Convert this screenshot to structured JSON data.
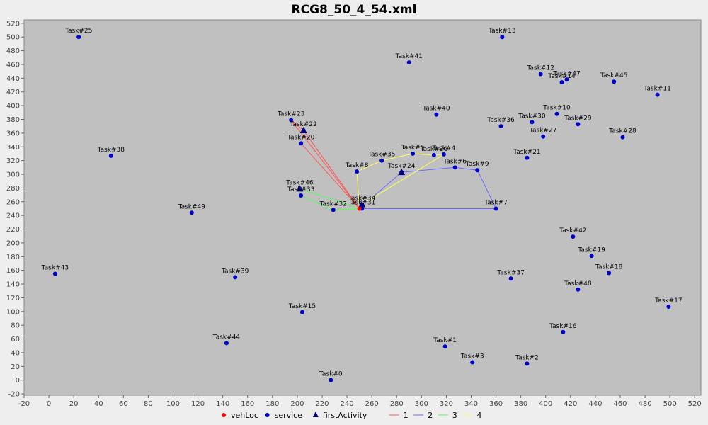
{
  "chart_data": {
    "type": "scatter",
    "title": "RCG8_50_4_54.xml",
    "xlim": [
      -20,
      525
    ],
    "ylim": [
      -22,
      525
    ],
    "xticks": [
      -20,
      0,
      20,
      40,
      60,
      80,
      100,
      120,
      140,
      160,
      180,
      200,
      220,
      240,
      260,
      280,
      300,
      320,
      340,
      360,
      380,
      400,
      420,
      440,
      460,
      480,
      500,
      520
    ],
    "yticks": [
      -20,
      0,
      20,
      40,
      60,
      80,
      100,
      120,
      140,
      160,
      180,
      200,
      220,
      240,
      260,
      280,
      300,
      320,
      340,
      360,
      380,
      400,
      420,
      440,
      460,
      480,
      500,
      520
    ],
    "grid": false,
    "legend_position": "bottom",
    "colors": {
      "background": "#c0c0c0",
      "service": "#0000cc",
      "vehLoc": "#ff0000",
      "firstActivity": "#000080",
      "route_1": "#ff5555",
      "route_2": "#6a6aff",
      "route_3": "#55ff55",
      "route_4": "#ffff55"
    },
    "legend": [
      {
        "label": "vehLoc",
        "marker": "circle",
        "color": "#ff0000"
      },
      {
        "label": "service",
        "marker": "circle",
        "color": "#0000cc"
      },
      {
        "label": "firstActivity",
        "marker": "triangle",
        "color": "#000080"
      },
      {
        "label": "1",
        "marker": "line",
        "color": "#ff5555"
      },
      {
        "label": "2",
        "marker": "line",
        "color": "#6a6aff"
      },
      {
        "label": "3",
        "marker": "line",
        "color": "#55ff55"
      },
      {
        "label": "4",
        "marker": "line",
        "color": "#ffff55"
      }
    ],
    "vehLoc": {
      "x": 250,
      "y": 250
    },
    "tasks": [
      {
        "label": "Task#0",
        "x": 227,
        "y": 0
      },
      {
        "label": "Task#1",
        "x": 319,
        "y": 49
      },
      {
        "label": "Task#2",
        "x": 385,
        "y": 24
      },
      {
        "label": "Task#3",
        "x": 341,
        "y": 26
      },
      {
        "label": "Task#4",
        "x": 318,
        "y": 329
      },
      {
        "label": "Task#5",
        "x": 293,
        "y": 330
      },
      {
        "label": "Task#6",
        "x": 327,
        "y": 310
      },
      {
        "label": "Task#7",
        "x": 360,
        "y": 250
      },
      {
        "label": "Task#8",
        "x": 248,
        "y": 304
      },
      {
        "label": "Task#9",
        "x": 345,
        "y": 306
      },
      {
        "label": "Task#10",
        "x": 409,
        "y": 388
      },
      {
        "label": "Task#11",
        "x": 490,
        "y": 416
      },
      {
        "label": "Task#12",
        "x": 396,
        "y": 446
      },
      {
        "label": "Task#13",
        "x": 365,
        "y": 500
      },
      {
        "label": "Task#14",
        "x": 413,
        "y": 434
      },
      {
        "label": "Task#15",
        "x": 204,
        "y": 99
      },
      {
        "label": "Task#16",
        "x": 414,
        "y": 70
      },
      {
        "label": "Task#17",
        "x": 499,
        "y": 107
      },
      {
        "label": "Task#18",
        "x": 451,
        "y": 156
      },
      {
        "label": "Task#19",
        "x": 437,
        "y": 181
      },
      {
        "label": "Task#20",
        "x": 203,
        "y": 345
      },
      {
        "label": "Task#21",
        "x": 385,
        "y": 324
      },
      {
        "label": "Task#22",
        "x": 205,
        "y": 364
      },
      {
        "label": "Task#23",
        "x": 195,
        "y": 379
      },
      {
        "label": "Task#24",
        "x": 284,
        "y": 303
      },
      {
        "label": "Task#25",
        "x": 24,
        "y": 500
      },
      {
        "label": "Task#26",
        "x": 310,
        "y": 328
      },
      {
        "label": "Task#27",
        "x": 398,
        "y": 355
      },
      {
        "label": "Task#28",
        "x": 462,
        "y": 354
      },
      {
        "label": "Task#29",
        "x": 426,
        "y": 373
      },
      {
        "label": "Task#30",
        "x": 389,
        "y": 376
      },
      {
        "label": "Task#31",
        "x": 252,
        "y": 250
      },
      {
        "label": "Task#32",
        "x": 229,
        "y": 248
      },
      {
        "label": "Task#33",
        "x": 203,
        "y": 269
      },
      {
        "label": "Task#34",
        "x": 252,
        "y": 256
      },
      {
        "label": "Task#35",
        "x": 268,
        "y": 320
      },
      {
        "label": "Task#36",
        "x": 364,
        "y": 370
      },
      {
        "label": "Task#37",
        "x": 372,
        "y": 148
      },
      {
        "label": "Task#38",
        "x": 50,
        "y": 327
      },
      {
        "label": "Task#39",
        "x": 150,
        "y": 150
      },
      {
        "label": "Task#40",
        "x": 312,
        "y": 387
      },
      {
        "label": "Task#41",
        "x": 290,
        "y": 463
      },
      {
        "label": "Task#42",
        "x": 422,
        "y": 209
      },
      {
        "label": "Task#43",
        "x": 5,
        "y": 155
      },
      {
        "label": "Task#44",
        "x": 143,
        "y": 54
      },
      {
        "label": "Task#45",
        "x": 455,
        "y": 435
      },
      {
        "label": "Task#46",
        "x": 202,
        "y": 279
      },
      {
        "label": "Task#47",
        "x": 417,
        "y": 438
      },
      {
        "label": "Task#48",
        "x": 426,
        "y": 132
      },
      {
        "label": "Task#49",
        "x": 115,
        "y": 244
      }
    ],
    "first_activities": [
      {
        "x": 205,
        "y": 364
      },
      {
        "x": 284,
        "y": 303
      },
      {
        "x": 202,
        "y": 279
      },
      {
        "x": 252,
        "y": 256
      }
    ],
    "series": [
      {
        "name": "1",
        "color": "#ff5555",
        "path": [
          [
            250,
            250
          ],
          [
            195,
            379
          ],
          [
            205,
            364
          ],
          [
            250,
            250
          ],
          [
            203,
            345
          ],
          [
            250,
            250
          ]
        ]
      },
      {
        "name": "2",
        "color": "#6a6aff",
        "path": [
          [
            250,
            250
          ],
          [
            284,
            303
          ],
          [
            327,
            310
          ],
          [
            345,
            306
          ],
          [
            360,
            250
          ],
          [
            252,
            250
          ]
        ]
      },
      {
        "name": "3",
        "color": "#55ff55",
        "path": [
          [
            250,
            250
          ],
          [
            202,
            279
          ],
          [
            203,
            269
          ],
          [
            229,
            248
          ],
          [
            250,
            250
          ]
        ]
      },
      {
        "name": "4",
        "color": "#ffff55",
        "path": [
          [
            250,
            250
          ],
          [
            248,
            304
          ],
          [
            268,
            320
          ],
          [
            293,
            330
          ],
          [
            310,
            328
          ],
          [
            318,
            329
          ],
          [
            252,
            256
          ],
          [
            250,
            250
          ]
        ]
      }
    ]
  }
}
